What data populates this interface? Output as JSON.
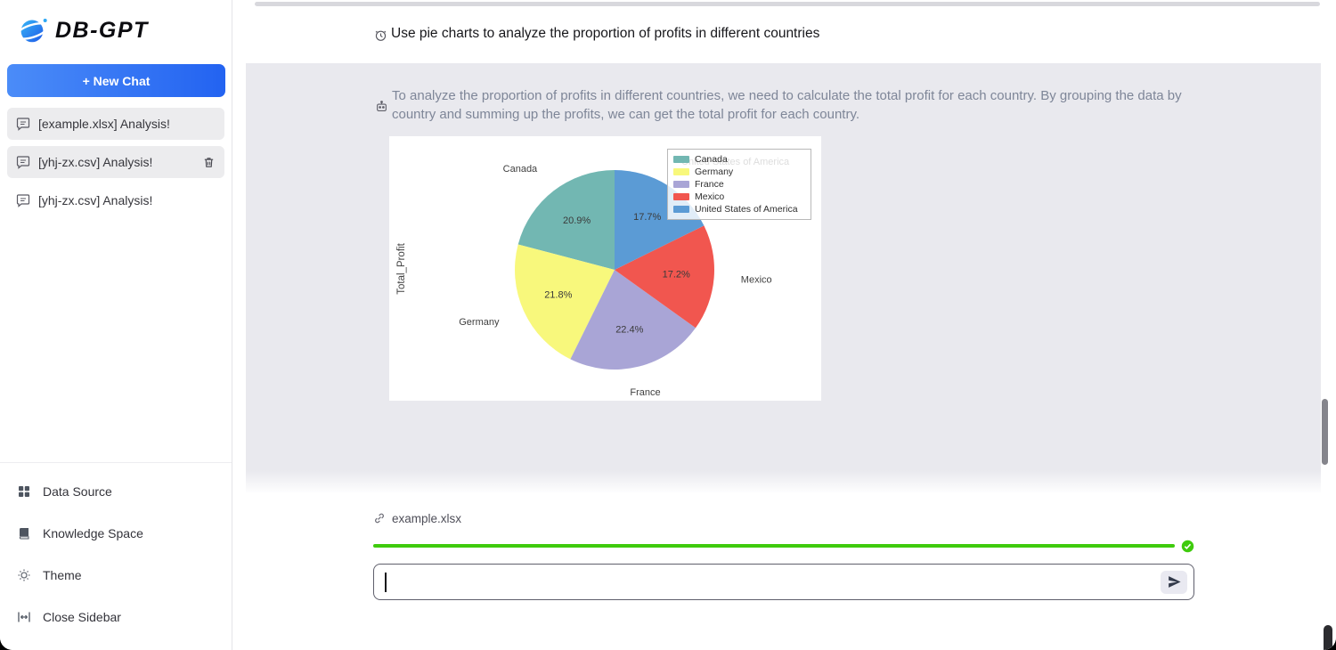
{
  "app": {
    "name": "DB-GPT"
  },
  "theme": {
    "accent_blue": "#2363f1",
    "accent_blue_2": "#4b8cf8",
    "progress_green": "#3fcb0d",
    "chat_area_bg": "#e9e9ee",
    "assistant_text": "#7e8698"
  },
  "sidebar": {
    "logo_text": "DB-GPT",
    "new_chat_label": "+ New Chat",
    "chats": [
      {
        "label": "[example.xlsx] Analysis!",
        "active": true,
        "has_delete": false
      },
      {
        "label": "[yhj-zx.csv] Analysis!",
        "active": false,
        "has_delete": true
      },
      {
        "label": "[yhj-zx.csv] Analysis!",
        "active": false,
        "has_delete": false
      }
    ],
    "footer_items": [
      {
        "label": "Data Source",
        "icon": "grid-icon"
      },
      {
        "label": "Knowledge Space",
        "icon": "book-icon"
      },
      {
        "label": "Theme",
        "icon": "sun-icon"
      },
      {
        "label": "Close Sidebar",
        "icon": "collapse-horizontal-icon"
      }
    ]
  },
  "chat": {
    "user_message": "Use pie charts to analyze the proportion of profits in different countries",
    "assistant_message": "To analyze the proportion of profits in different countries, we need to calculate the total profit for each country. By grouping the data by country and summing up the profits, we can get the total profit for each country."
  },
  "chart_data": {
    "type": "pie",
    "title": "",
    "ylabel": "Total_Profit",
    "labels": [
      "Canada",
      "Germany",
      "France",
      "Mexico",
      "United States of America"
    ],
    "values": [
      20.9,
      21.8,
      22.4,
      17.2,
      17.7
    ],
    "percent_labels": [
      "20.9%",
      "21.8%",
      "22.4%",
      "17.2%",
      "17.7%"
    ],
    "colors": [
      "#72b7b2",
      "#f8f87c",
      "#a9a5d6",
      "#f1564f",
      "#5b9bd5"
    ],
    "start_angle": 90,
    "direction": "counterclockwise",
    "legend_position": "upper right",
    "legend_entries": [
      "Canada",
      "Germany",
      "France",
      "Mexico",
      "United States of America"
    ]
  },
  "composer": {
    "file_name": "example.xlsx",
    "progress_percent": 100,
    "upload_complete": true,
    "input_value": "",
    "input_placeholder": ""
  },
  "icons": {
    "logo": "planet",
    "chat_item": "speech-bubble",
    "delete": "trash",
    "user_message": "alarm-clock-face",
    "assistant_message": "robot-head",
    "file_link": "link",
    "progress_done": "check-circle",
    "send": "paper-plane"
  }
}
